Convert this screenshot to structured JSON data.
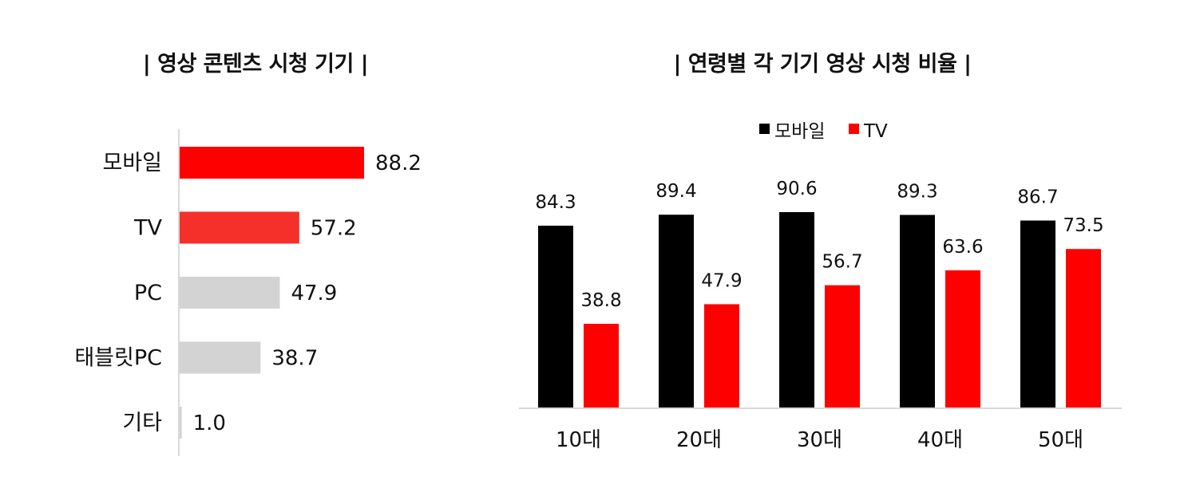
{
  "chart_data": [
    {
      "type": "bar",
      "orientation": "horizontal",
      "title": "| 영상 콘텐츠 시청 기기 |",
      "categories": [
        "모바일",
        "TV",
        "PC",
        "태블릿PC",
        "기타"
      ],
      "values": [
        88.2,
        57.2,
        47.9,
        38.7,
        1.0
      ],
      "value_labels": [
        "88.2",
        "57.2",
        "47.9",
        "38.7",
        "1.0"
      ],
      "colors": [
        "#ff0000",
        "#f5302a",
        "#d3d3d3",
        "#d3d3d3",
        "#d3d3d3"
      ],
      "xlim": [
        0,
        100
      ],
      "grid": false,
      "legend": false
    },
    {
      "type": "bar",
      "title": "| 연령별 각 기기 영상 시청 비율 |",
      "categories": [
        "10대",
        "20대",
        "30대",
        "40대",
        "50대"
      ],
      "series": [
        {
          "name": "모바일",
          "color": "#000000",
          "values": [
            84.3,
            89.4,
            90.6,
            89.3,
            86.7
          ],
          "labels": [
            "84.3",
            "89.4",
            "90.6",
            "89.3",
            "86.7"
          ]
        },
        {
          "name": "TV",
          "color": "#ff0000",
          "values": [
            38.8,
            47.9,
            56.7,
            63.6,
            73.5
          ],
          "labels": [
            "38.8",
            "47.9",
            "56.7",
            "63.6",
            "73.5"
          ]
        }
      ],
      "ylim": [
        0,
        100
      ],
      "grid": false,
      "legend_position": "top-center"
    }
  ]
}
